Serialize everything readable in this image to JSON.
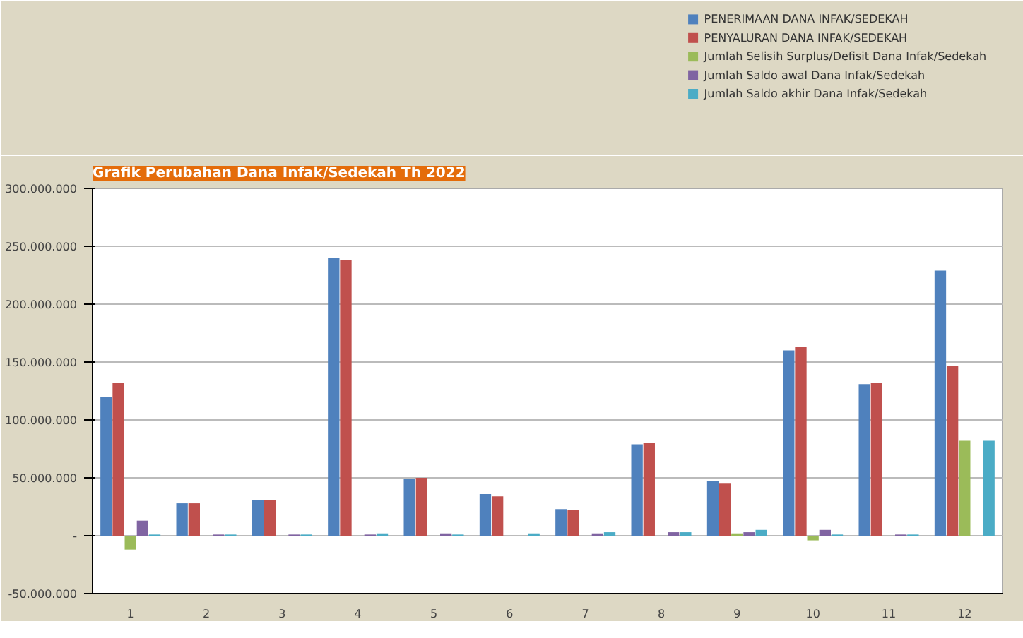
{
  "chart_data": {
    "type": "bar",
    "title": "Grafik Perubahan Dana Infak/Sedekah Th 2022",
    "categories": [
      "1",
      "2",
      "3",
      "4",
      "5",
      "6",
      "7",
      "8",
      "9",
      "10",
      "11",
      "12"
    ],
    "series": [
      {
        "name": "PENERIMAAN DANA INFAK/SEDEKAH",
        "color": "#4f81bd",
        "values": [
          120000000,
          28000000,
          31000000,
          240000000,
          49000000,
          36000000,
          23000000,
          79000000,
          47000000,
          160000000,
          131000000,
          229000000
        ]
      },
      {
        "name": "PENYALURAN DANA INFAK/SEDEKAH",
        "color": "#c0504d",
        "values": [
          132000000,
          28000000,
          31000000,
          238000000,
          50000000,
          34000000,
          22000000,
          80000000,
          45000000,
          163000000,
          132000000,
          147000000
        ]
      },
      {
        "name": "Jumlah Selisih Surplus/Defisit Dana Infak/Sedekah",
        "color": "#9bbb59",
        "values": [
          -12000000,
          0,
          0,
          0,
          0,
          0,
          0,
          0,
          2000000,
          -4000000,
          0,
          82000000
        ]
      },
      {
        "name": "Jumlah Saldo awal Dana Infak/Sedekah",
        "color": "#8064a2",
        "values": [
          13000000,
          1000000,
          1000000,
          1000000,
          2000000,
          0,
          2000000,
          3000000,
          3000000,
          5000000,
          1000000,
          0
        ]
      },
      {
        "name": "Jumlah Saldo akhir Dana Infak/Sedekah",
        "color": "#4bacc6",
        "values": [
          1000000,
          1000000,
          1000000,
          2000000,
          1000000,
          2000000,
          3000000,
          3000000,
          5000000,
          1000000,
          1000000,
          82000000
        ]
      }
    ],
    "ylim": [
      -50000000,
      300000000
    ],
    "yticks": [
      {
        "value": -50000000,
        "label": "-50.000.000"
      },
      {
        "value": 0,
        "label": "-"
      },
      {
        "value": 50000000,
        "label": "50.000.000"
      },
      {
        "value": 100000000,
        "label": "100.000.000"
      },
      {
        "value": 150000000,
        "label": "150.000.000"
      },
      {
        "value": 200000000,
        "label": "200.000.000"
      },
      {
        "value": 250000000,
        "label": "250.000.000"
      },
      {
        "value": 300000000,
        "label": "300.000.000"
      }
    ],
    "grid": "y",
    "legend": "top right"
  }
}
